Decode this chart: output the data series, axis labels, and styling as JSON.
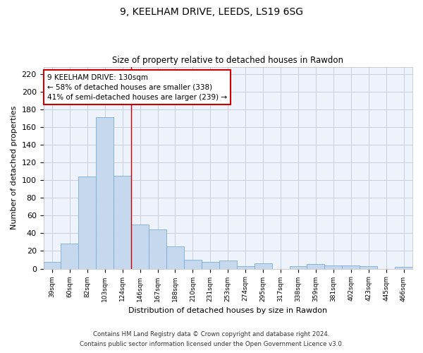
{
  "title1": "9, KEELHAM DRIVE, LEEDS, LS19 6SG",
  "title2": "Size of property relative to detached houses in Rawdon",
  "xlabel": "Distribution of detached houses by size in Rawdon",
  "ylabel": "Number of detached properties",
  "categories": [
    "39sqm",
    "60sqm",
    "82sqm",
    "103sqm",
    "124sqm",
    "146sqm",
    "167sqm",
    "188sqm",
    "210sqm",
    "231sqm",
    "253sqm",
    "274sqm",
    "295sqm",
    "317sqm",
    "338sqm",
    "359sqm",
    "381sqm",
    "402sqm",
    "423sqm",
    "445sqm",
    "466sqm"
  ],
  "values": [
    8,
    28,
    104,
    171,
    105,
    50,
    44,
    25,
    10,
    8,
    9,
    3,
    6,
    0,
    3,
    5,
    4,
    4,
    3,
    0,
    2
  ],
  "bar_color": "#c5d8ee",
  "bar_edge_color": "#7aadd4",
  "bg_color": "#eef2fa",
  "grid_color": "#c8d0e0",
  "annotation_text": "9 KEELHAM DRIVE: 130sqm\n← 58% of detached houses are smaller (338)\n41% of semi-detached houses are larger (239) →",
  "annotation_box_color": "#ffffff",
  "annotation_border_color": "#cc0000",
  "vline_color": "#cc0000",
  "ylim": [
    0,
    228
  ],
  "yticks": [
    0,
    20,
    40,
    60,
    80,
    100,
    120,
    140,
    160,
    180,
    200,
    220
  ],
  "footer1": "Contains HM Land Registry data © Crown copyright and database right 2024.",
  "footer2": "Contains public sector information licensed under the Open Government Licence v3.0."
}
